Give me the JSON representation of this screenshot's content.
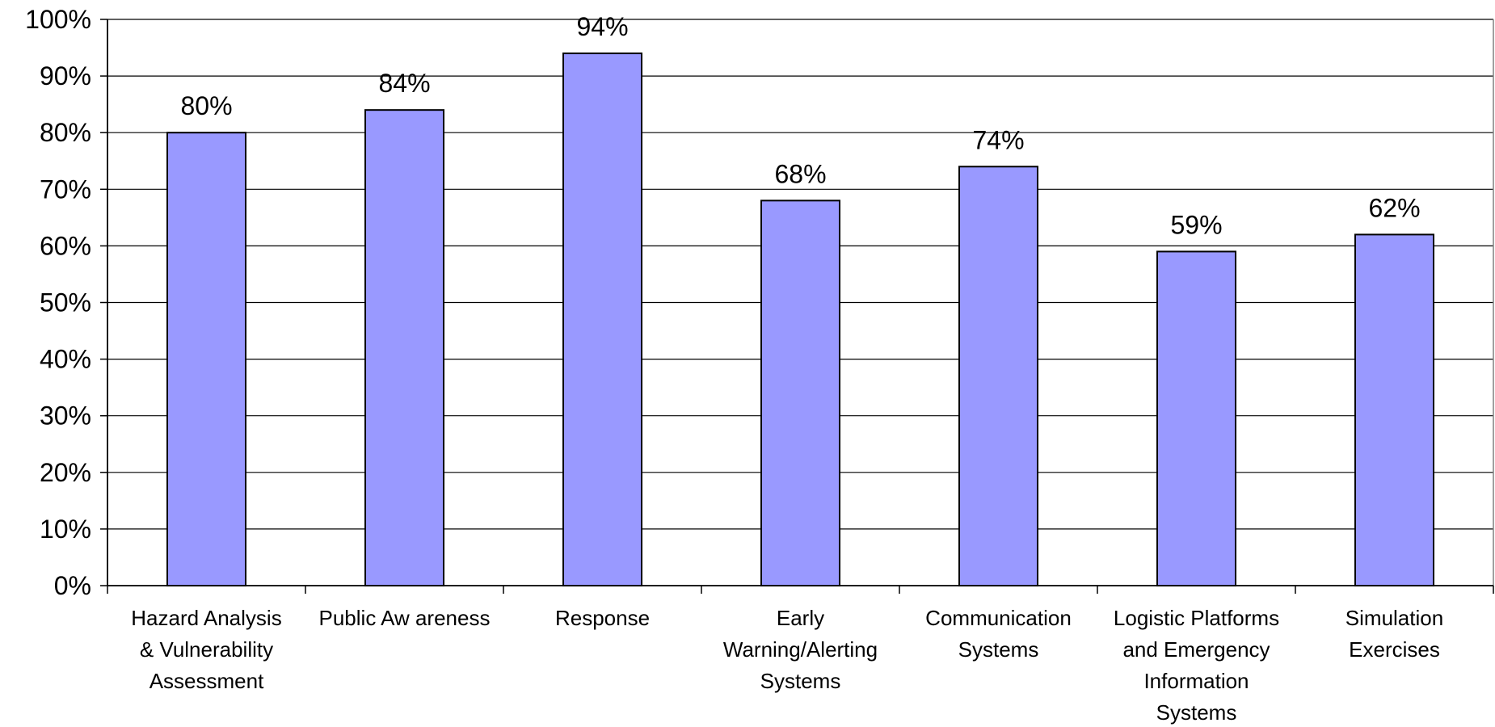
{
  "chart_data": {
    "type": "bar",
    "categories": [
      [
        "Hazard Analysis",
        "& Vulnerability",
        "Assessment"
      ],
      [
        "Public Aw areness"
      ],
      [
        "Response"
      ],
      [
        "Early",
        "Warning/Alerting",
        "Systems"
      ],
      [
        "Communication",
        "Systems"
      ],
      [
        "Logistic Platforms",
        "and Emergency",
        "Information",
        "Systems"
      ],
      [
        "Simulation",
        "Exercises"
      ]
    ],
    "values": [
      80,
      84,
      94,
      68,
      74,
      59,
      62
    ],
    "data_labels": [
      "80%",
      "84%",
      "94%",
      "68%",
      "74%",
      "59%",
      "62%"
    ],
    "ylim": [
      0,
      100
    ],
    "yticks": [
      0,
      10,
      20,
      30,
      40,
      50,
      60,
      70,
      80,
      90,
      100
    ],
    "ytick_labels": [
      "0%",
      "10%",
      "20%",
      "30%",
      "40%",
      "50%",
      "60%",
      "70%",
      "80%",
      "90%",
      "100%"
    ],
    "grid": true,
    "legend": "none",
    "colors": {
      "bar_fill": "#9999ff",
      "bar_stroke": "#000000",
      "grid": "#000000"
    },
    "title": "",
    "xlabel": "",
    "ylabel": ""
  }
}
